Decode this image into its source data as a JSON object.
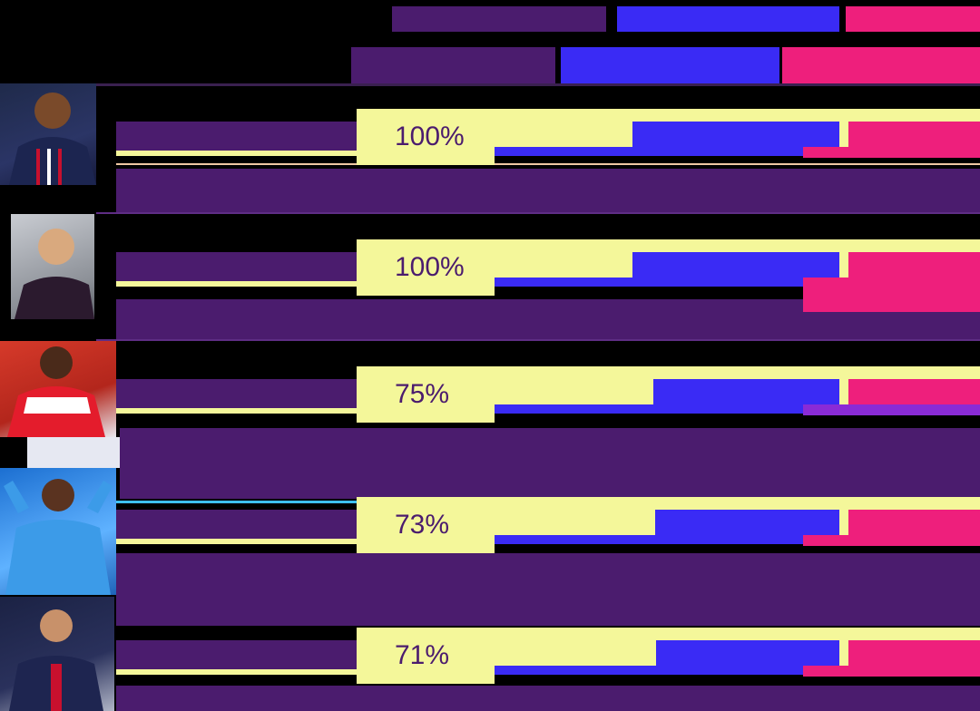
{
  "chart_data": {
    "type": "table",
    "title": "",
    "columns": [
      {
        "name": ""
      },
      {
        "name": ""
      },
      {
        "name": ""
      }
    ],
    "rows": [
      {
        "player": "",
        "value_pct": 100,
        "display": "100%"
      },
      {
        "player": "",
        "value_pct": 100,
        "display": "100%"
      },
      {
        "player": "",
        "value_pct": 75,
        "display": "75%"
      },
      {
        "player": "",
        "value_pct": 73,
        "display": "73%"
      },
      {
        "player": "",
        "value_pct": 71,
        "display": "71%"
      }
    ]
  },
  "colors": {
    "background": "#000000",
    "purple": "#4b1c6e",
    "blue": "#3a2bf5",
    "pink": "#ee1f7c",
    "yellow": "#f4f79a",
    "violet": "#8a2bd6"
  },
  "icons": [
    "player-photo-1",
    "player-photo-2",
    "player-photo-3",
    "player-photo-4",
    "player-photo-5"
  ]
}
